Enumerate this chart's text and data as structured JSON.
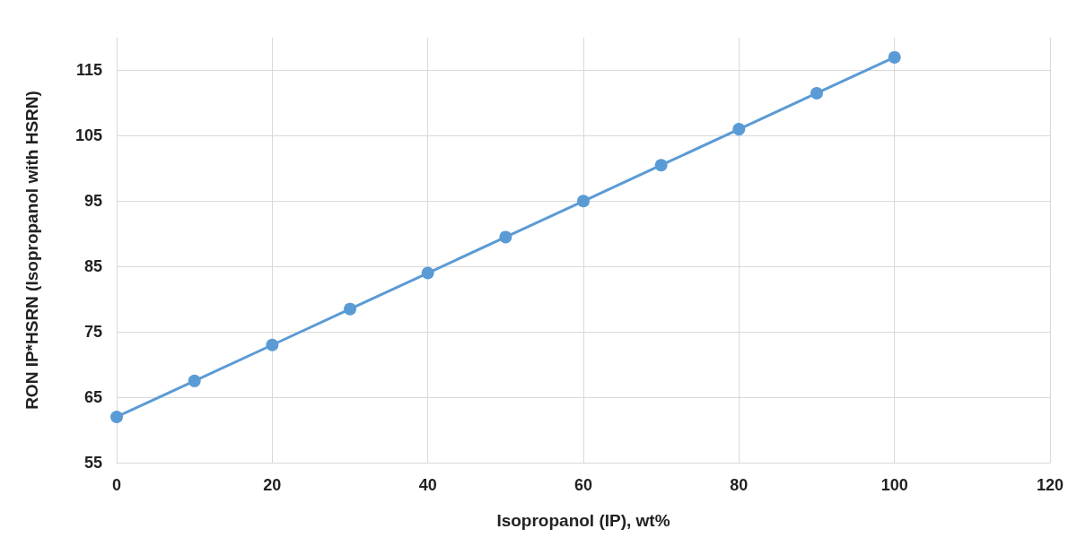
{
  "chart_data": {
    "type": "line",
    "xlabel": "Isopropanol (IP), wt%",
    "ylabel": "RON IP*HSRN (Isopropanol with HSRN)",
    "x": [
      0,
      10,
      20,
      30,
      40,
      50,
      60,
      70,
      80,
      90,
      100
    ],
    "series": [
      {
        "color": "#5b9bd5",
        "values": [
          62,
          67.5,
          73,
          78.5,
          84,
          89.5,
          95,
          100.5,
          106,
          111.5,
          117
        ]
      }
    ],
    "xlim": [
      0,
      120
    ],
    "xticks": [
      0,
      20,
      40,
      60,
      80,
      100,
      120
    ],
    "ylim": [
      55,
      120
    ],
    "yticks": [
      55,
      65,
      75,
      85,
      95,
      105,
      115
    ],
    "grid": true,
    "marker": "circle",
    "line_style": "solid"
  }
}
